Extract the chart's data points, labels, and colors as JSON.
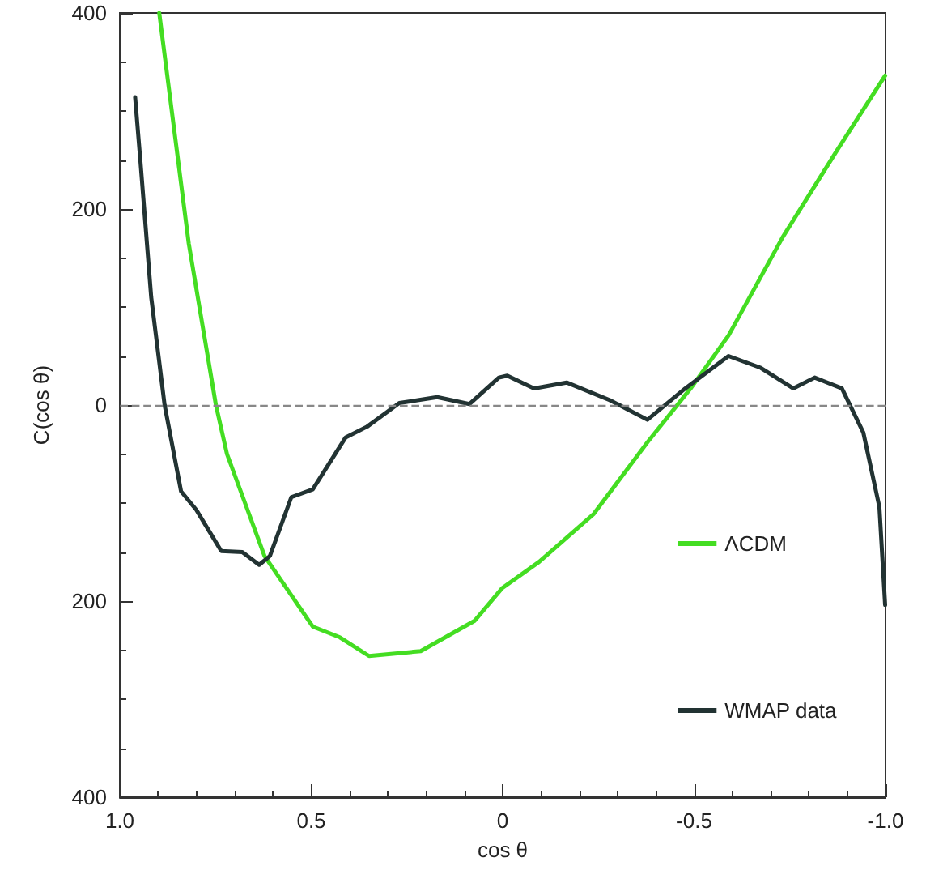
{
  "chart_data": {
    "type": "line",
    "xlabel": "cos θ",
    "ylabel": "C(cos θ)",
    "xlim": [
      1,
      -1
    ],
    "xticks": [
      {
        "value": 1,
        "label": "1.0"
      },
      0.5,
      0,
      -0.5,
      {
        "value": -1,
        "label": "-1.0"
      }
    ],
    "ylim": [
      -400,
      400
    ],
    "yticks": [
      {
        "value": -400,
        "label": "400"
      },
      {
        "value": -200,
        "label": "200"
      },
      0,
      200,
      400
    ],
    "grid": false,
    "legend": "bottom right",
    "marker": "none",
    "line_style": "solid",
    "ref_lines": [
      {
        "axis": "y",
        "value": 0,
        "color": "#888888",
        "line_style": "dashed"
      }
    ],
    "series": [
      {
        "name": "ΛCDM",
        "color": "#44dd22",
        "x": [
          0.897,
          0.82,
          0.749,
          0.72,
          0.622,
          0.496,
          0.425,
          0.349,
          0.214,
          0.073,
          0.002,
          -0.095,
          -0.238,
          -0.378,
          -0.491,
          -0.59,
          -0.731,
          -0.872,
          -0.999
        ],
        "values": [
          400,
          165,
          0,
          -50,
          -154,
          -226,
          -237,
          -256,
          -251,
          -220,
          -187,
          -160,
          -111,
          -38,
          17,
          71,
          171,
          259,
          336
        ]
      },
      {
        "name": "WMAP data",
        "color": "#223333",
        "x": [
          0.96,
          0.946,
          0.918,
          0.883,
          0.84,
          0.8,
          0.735,
          0.68,
          0.636,
          0.608,
          0.552,
          0.496,
          0.41,
          0.354,
          0.27,
          0.171,
          0.087,
          0.01,
          -0.012,
          -0.082,
          -0.167,
          -0.28,
          -0.378,
          -0.477,
          -0.59,
          -0.674,
          -0.759,
          -0.815,
          -0.886,
          -0.942,
          -0.984,
          -0.999
        ],
        "values": [
          314,
          248,
          110,
          0,
          -88,
          -107,
          -149,
          -150,
          -163,
          -154,
          -94,
          -86,
          -33,
          -22,
          2,
          8,
          1,
          28,
          30,
          17,
          23,
          5,
          -15,
          17,
          50,
          38,
          17,
          28,
          17,
          -28,
          -104,
          -204
        ]
      }
    ]
  }
}
